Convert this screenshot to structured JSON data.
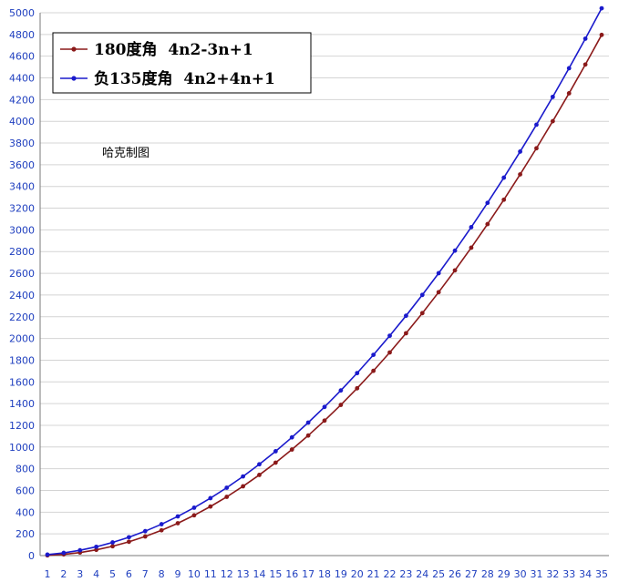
{
  "chart_data": {
    "type": "line",
    "title": "",
    "xlabel": "",
    "ylabel": "",
    "x": [
      1,
      2,
      3,
      4,
      5,
      6,
      7,
      8,
      9,
      10,
      11,
      12,
      13,
      14,
      15,
      16,
      17,
      18,
      19,
      20,
      21,
      22,
      23,
      24,
      25,
      26,
      27,
      28,
      29,
      30,
      31,
      32,
      33,
      34,
      35
    ],
    "ylim": [
      0,
      5000
    ],
    "yticks": [
      0,
      200,
      400,
      600,
      800,
      1000,
      1200,
      1400,
      1600,
      1800,
      2000,
      2200,
      2400,
      2600,
      2800,
      3000,
      3200,
      3400,
      3600,
      3800,
      4000,
      4200,
      4400,
      4600,
      4800,
      5000
    ],
    "grid": true,
    "legend_position": "top-left",
    "annotation": "哈克制图",
    "series": [
      {
        "name": "180度角  4n2-3n+1",
        "color": "#8b1a1a",
        "values": [
          2,
          11,
          28,
          53,
          86,
          127,
          176,
          233,
          298,
          371,
          452,
          541,
          638,
          743,
          856,
          977,
          1106,
          1243,
          1388,
          1541,
          1702,
          1871,
          2048,
          2233,
          2426,
          2627,
          2836,
          3053,
          3278,
          3511,
          3752,
          4001,
          4258,
          4523,
          4796
        ]
      },
      {
        "name": "负135度角  4n2+4n+1",
        "color": "#1a1acc",
        "values": [
          9,
          25,
          49,
          81,
          121,
          169,
          225,
          289,
          361,
          441,
          529,
          625,
          729,
          841,
          961,
          1089,
          1225,
          1369,
          1521,
          1681,
          1849,
          2025,
          2209,
          2401,
          2601,
          2809,
          3025,
          3249,
          3481,
          3721,
          3969,
          4225,
          4489,
          4761,
          5041
        ]
      }
    ]
  }
}
